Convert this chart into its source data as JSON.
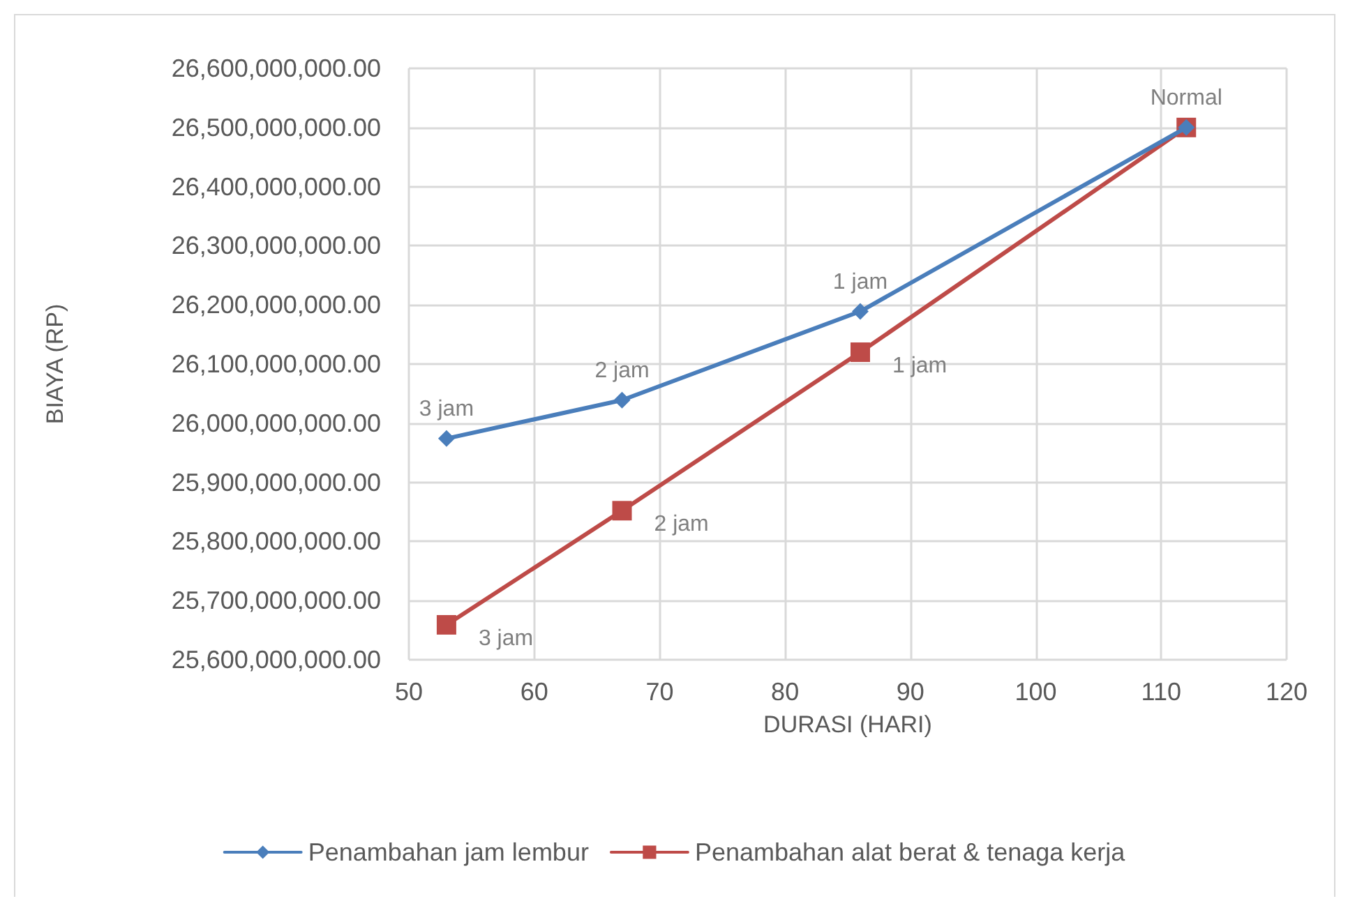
{
  "chart_data": {
    "type": "line",
    "xlabel": "DURASI (HARI)",
    "ylabel": "BIAYA (RP)",
    "x": [
      53,
      67,
      86,
      112
    ],
    "series": [
      {
        "name": "Penambahan jam lembur",
        "color": "#4a7ebb",
        "marker": "diamond",
        "values": [
          25974000000,
          26039000000,
          26189000000,
          26500000000
        ]
      },
      {
        "name": "Penambahan alat berat & tenaga kerja",
        "color": "#be4b48",
        "marker": "square",
        "values": [
          25659000000,
          25852000000,
          26120000000,
          26500000000
        ]
      }
    ],
    "annotations": [
      {
        "text": "3 jam",
        "x": 53,
        "y": 25974000000
      },
      {
        "text": "2 jam",
        "x": 67,
        "y": 26039000000
      },
      {
        "text": "1 jam",
        "x": 86,
        "y": 26189000000
      },
      {
        "text": "Normal",
        "x": 112,
        "y": 26500000000
      },
      {
        "text": "3 jam",
        "x": 53,
        "y": 25659000000
      },
      {
        "text": "2 jam",
        "x": 67,
        "y": 25852000000
      },
      {
        "text": "1 jam",
        "x": 86,
        "y": 26120000000
      }
    ],
    "xlim": [
      50,
      120
    ],
    "xticks": [
      50,
      60,
      70,
      80,
      90,
      100,
      110,
      120
    ],
    "ylim": [
      25600000000,
      26600000000
    ],
    "yticks": [
      {
        "value": 25600000000,
        "label": "25,600,000,000.00"
      },
      {
        "value": 25700000000,
        "label": "25,700,000,000.00"
      },
      {
        "value": 25800000000,
        "label": "25,800,000,000.00"
      },
      {
        "value": 25900000000,
        "label": "25,900,000,000.00"
      },
      {
        "value": 26000000000,
        "label": "26,000,000,000.00"
      },
      {
        "value": 26100000000,
        "label": "26,100,000,000.00"
      },
      {
        "value": 26200000000,
        "label": "26,200,000,000.00"
      },
      {
        "value": 26300000000,
        "label": "26,300,000,000.00"
      },
      {
        "value": 26400000000,
        "label": "26,400,000,000.00"
      },
      {
        "value": 26500000000,
        "label": "26,500,000,000.00"
      },
      {
        "value": 26600000000,
        "label": "26,600,000,000.00"
      }
    ],
    "grid": true,
    "legend": "bottom",
    "line_style": "solid"
  }
}
